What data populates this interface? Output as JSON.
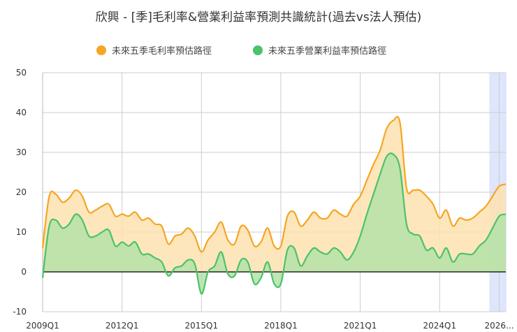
{
  "title": "欣興 - [季]毛利率&營業利益率預測共識統計(過去vs法人預估)",
  "colors": {
    "gross": "#f5a623",
    "grossFill": "#fde2b0",
    "op": "#4cc26a",
    "opFill": "#b4e2a8",
    "forecast": "#dfe6fb"
  },
  "chart_data": {
    "type": "area",
    "title": "欣興 - [季]毛利率&營業利益率預測共識統計(過去vs法人預估)",
    "xlabel": "",
    "ylabel": "",
    "ylim": [
      -10,
      50
    ],
    "yticks": [
      -10,
      0,
      10,
      20,
      30,
      40,
      50
    ],
    "xticklabels": [
      "2009Q1",
      "2012Q1",
      "2015Q1",
      "2018Q1",
      "2021Q1",
      "2024Q1",
      "2026..."
    ],
    "xtick_index": [
      0,
      12,
      24,
      36,
      48,
      60,
      69
    ],
    "forecast_start_index": 67,
    "legend": {
      "placement": "top"
    },
    "grid": true,
    "x": [
      "2009Q1",
      "2009Q2",
      "2009Q3",
      "2009Q4",
      "2010Q1",
      "2010Q2",
      "2010Q3",
      "2010Q4",
      "2011Q1",
      "2011Q2",
      "2011Q3",
      "2011Q4",
      "2012Q1",
      "2012Q2",
      "2012Q3",
      "2012Q4",
      "2013Q1",
      "2013Q2",
      "2013Q3",
      "2013Q4",
      "2014Q1",
      "2014Q2",
      "2014Q3",
      "2014Q4",
      "2015Q1",
      "2015Q2",
      "2015Q3",
      "2015Q4",
      "2016Q1",
      "2016Q2",
      "2016Q3",
      "2016Q4",
      "2017Q1",
      "2017Q2",
      "2017Q3",
      "2017Q4",
      "2018Q1",
      "2018Q2",
      "2018Q3",
      "2018Q4",
      "2019Q1",
      "2019Q2",
      "2019Q3",
      "2019Q4",
      "2020Q1",
      "2020Q2",
      "2020Q3",
      "2020Q4",
      "2021Q1",
      "2021Q2",
      "2021Q3",
      "2021Q4",
      "2022Q1",
      "2022Q2",
      "2022Q3",
      "2022Q4",
      "2023Q1",
      "2023Q2",
      "2023Q3",
      "2023Q4",
      "2024Q1",
      "2024Q2",
      "2024Q3",
      "2024Q4",
      "2025Q1",
      "2025Q2",
      "2025Q3",
      "2025Q4",
      "2026Q1",
      "2026Q2",
      "2026Q3"
    ],
    "series": [
      {
        "name": "未來五季毛利率預估路徑",
        "values": [
          6,
          19,
          19.5,
          17.5,
          18.5,
          20.5,
          19,
          15,
          15.5,
          16.5,
          17,
          14,
          14.5,
          14,
          15,
          13,
          13.5,
          12,
          11.5,
          7,
          9,
          9.5,
          11,
          9,
          5,
          8,
          10,
          12.5,
          8,
          7,
          11.5,
          10.5,
          6.5,
          7.5,
          11,
          6.5,
          6.5,
          14,
          15,
          11.5,
          13,
          15,
          13.5,
          13.5,
          15.5,
          14.5,
          14,
          17,
          19,
          23,
          27,
          30.5,
          36,
          38,
          37.5,
          21,
          20.5,
          20.5,
          19,
          17,
          13.5,
          15.5,
          11.5,
          13.5,
          13,
          13.5,
          15,
          16.5,
          19,
          21.5,
          22
        ]
      },
      {
        "name": "未來五季營業利益率預估路徑",
        "values": [
          -1.5,
          11.5,
          13,
          11,
          12,
          14.5,
          13,
          9,
          9,
          10,
          10.5,
          6.5,
          7.5,
          6.5,
          7.5,
          4.5,
          4.5,
          3.5,
          2.5,
          -1,
          1,
          1.5,
          3,
          2,
          -5.5,
          0,
          1.5,
          5,
          -0.5,
          -1,
          3,
          2.5,
          -3,
          -1.5,
          2.5,
          -3,
          -3,
          5.5,
          6,
          1.5,
          4,
          6,
          5,
          4.5,
          6,
          5,
          3,
          5,
          9,
          14.5,
          19.5,
          24.5,
          29,
          29.5,
          26,
          12,
          9.5,
          9,
          5.5,
          6,
          3.5,
          6,
          2.5,
          4.5,
          4.5,
          4.5,
          6.5,
          8,
          11,
          14,
          14.5
        ]
      }
    ]
  }
}
